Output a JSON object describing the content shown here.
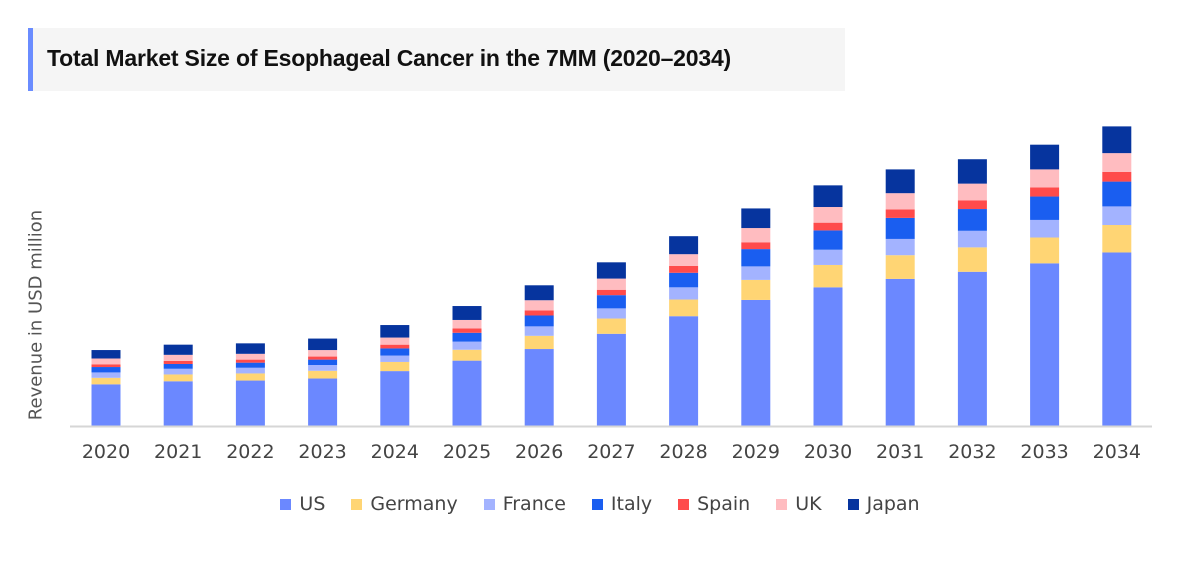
{
  "chart_data": {
    "type": "bar",
    "stacked": true,
    "title": "Total Market Size of Esophageal Cancer in the 7MM (2020–2034)",
    "xlabel": "",
    "ylabel": "Revenue in USD million",
    "y_ticks_shown": false,
    "grid": false,
    "legend_position": "bottom",
    "ylim": [
      0,
      300
    ],
    "categories": [
      "2020",
      "2021",
      "2022",
      "2023",
      "2024",
      "2025",
      "2026",
      "2027",
      "2028",
      "2029",
      "2030",
      "2031",
      "2032",
      "2033",
      "2034"
    ],
    "series": [
      {
        "name": "US",
        "color": "#6b88ff",
        "values": [
          41,
          44,
          44.7,
          46.7,
          54,
          64.3,
          75.7,
          90.7,
          108,
          124,
          136.4,
          144.7,
          151.7,
          160,
          170.7
        ]
      },
      {
        "name": "Germany",
        "color": "#ffd574",
        "values": [
          6.4,
          6.7,
          7,
          7.6,
          9,
          10.7,
          13,
          15,
          16.4,
          19.7,
          22,
          23.3,
          24,
          25.4,
          27
        ]
      },
      {
        "name": "France",
        "color": "#a3b3ff",
        "values": [
          5.3,
          5.6,
          5.6,
          5.7,
          6.3,
          8,
          9.3,
          10,
          12,
          13.3,
          15,
          16,
          16.3,
          17.3,
          18.3
        ]
      },
      {
        "name": "Italy",
        "color": "#1a5ef0",
        "values": [
          5.3,
          4.7,
          5,
          5.3,
          7,
          8.7,
          10.7,
          13,
          14.3,
          17,
          19,
          20.7,
          21.4,
          23,
          24.4
        ]
      },
      {
        "name": "Spain",
        "color": "#ff4b4b",
        "values": [
          2.7,
          3,
          3,
          3,
          3.7,
          4.3,
          5,
          5.3,
          6.7,
          6.7,
          7.6,
          8.3,
          8.6,
          9,
          9.6
        ]
      },
      {
        "name": "UK",
        "color": "#ffbcc0",
        "values": [
          5.7,
          6,
          5.7,
          6.4,
          7,
          8.3,
          10,
          11,
          11.6,
          14,
          15.4,
          16,
          16.4,
          17.7,
          18.4
        ]
      },
      {
        "name": "Japan",
        "color": "#06349e",
        "values": [
          8.3,
          10,
          10.3,
          11.3,
          12.3,
          13.7,
          14.7,
          16,
          17.7,
          19.3,
          21.3,
          23.4,
          24,
          24.3,
          26.3
        ]
      }
    ]
  }
}
